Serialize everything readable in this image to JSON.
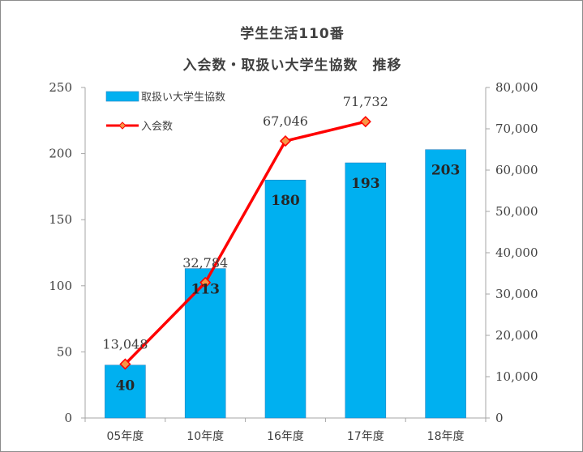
{
  "chart_data": {
    "type": "bar",
    "title": "学生生活110番",
    "subtitle": "入会数・取扱い大学生協数　推移",
    "categories": [
      "05年度",
      "10年度",
      "16年度",
      "17年度",
      "18年度"
    ],
    "series": [
      {
        "name": "取扱い大学生協数",
        "type": "bar",
        "axis": "left",
        "color": "#00b0f0",
        "values": [
          40,
          113,
          180,
          193,
          203
        ],
        "labels": [
          "40",
          "113",
          "180",
          "193",
          "203"
        ]
      },
      {
        "name": "入会数",
        "type": "line",
        "axis": "right",
        "color": "#ff0000",
        "marker_color": "#f79646",
        "values": [
          13048,
          32784,
          67046,
          71732,
          null
        ],
        "labels": [
          "13,048",
          "32,784",
          "67,046",
          "71,732",
          ""
        ]
      }
    ],
    "y_left": {
      "ylim": [
        0,
        250
      ],
      "ticks": [
        0,
        50,
        100,
        150,
        200,
        250
      ],
      "tick_labels": [
        "0",
        "50",
        "100",
        "150",
        "200",
        "250"
      ]
    },
    "y_right": {
      "ylim": [
        0,
        80000
      ],
      "ticks": [
        0,
        10000,
        20000,
        30000,
        40000,
        50000,
        60000,
        70000,
        80000
      ],
      "tick_labels": [
        "0",
        "10,000",
        "20,000",
        "30,000",
        "40,000",
        "50,000",
        "60,000",
        "70,000",
        "80,000"
      ]
    },
    "grid": false,
    "legend": "top-left"
  }
}
